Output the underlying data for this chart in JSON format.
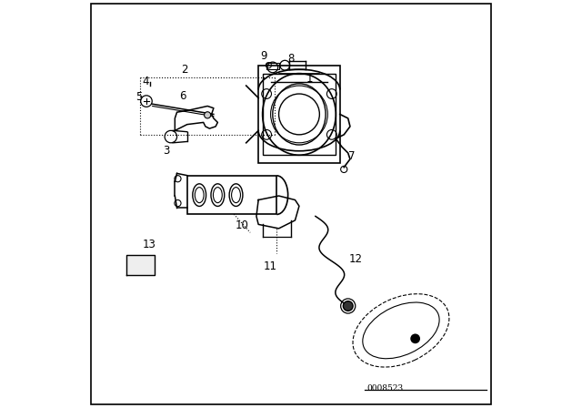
{
  "title": "",
  "background_color": "#ffffff",
  "border_color": "#000000",
  "diagram_color": "#000000",
  "watermark": "0008523",
  "fig_width": 6.4,
  "fig_height": 4.48,
  "dpi": 100
}
